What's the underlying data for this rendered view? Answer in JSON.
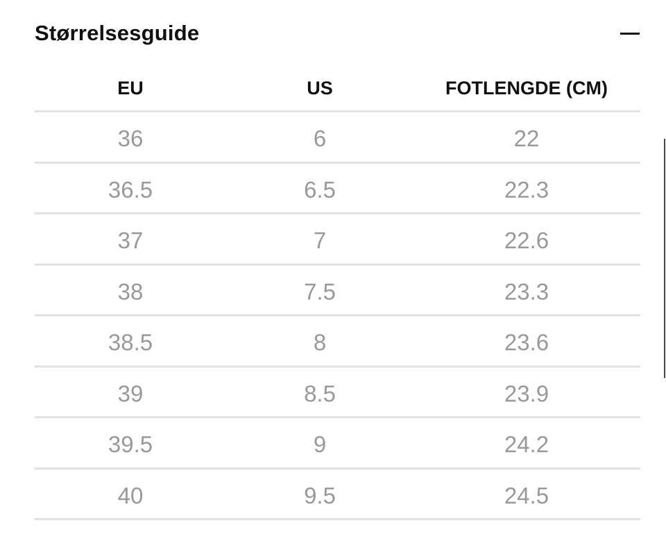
{
  "header": {
    "title": "Størrelsesguide"
  },
  "table": {
    "columns": [
      "EU",
      "US",
      "FOTLENGDE (CM)"
    ],
    "rows": [
      [
        "36",
        "6",
        "22"
      ],
      [
        "36.5",
        "6.5",
        "22.3"
      ],
      [
        "37",
        "7",
        "22.6"
      ],
      [
        "38",
        "7.5",
        "23.3"
      ],
      [
        "38.5",
        "8",
        "23.6"
      ],
      [
        "39",
        "8.5",
        "23.9"
      ],
      [
        "39.5",
        "9",
        "24.2"
      ],
      [
        "40",
        "9.5",
        "24.5"
      ]
    ]
  }
}
